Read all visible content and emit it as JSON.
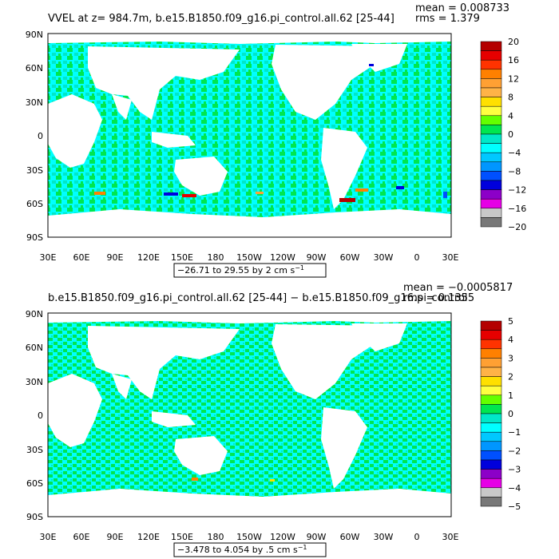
{
  "panels": [
    {
      "title": "VVEL at z= 984.7m, b.e15.B1850.f09_g16.pi_control.all.62 [25-44]",
      "mean": "mean = 0.008733",
      "rms": "rms = 1.379",
      "contour_info": "−26.71 to 29.55 by 2 cm s",
      "contour_unit_exp": "−1",
      "lat_labels": [
        "90N",
        "60N",
        "30N",
        "0",
        "30S",
        "60S",
        "90S"
      ],
      "lon_labels": [
        "30E",
        "60E",
        "90E",
        "120E",
        "150E",
        "180",
        "150W",
        "120W",
        "90W",
        "60W",
        "30W",
        "0",
        "30E"
      ],
      "colorbar_labels": [
        "20",
        "16",
        "12",
        "8",
        "4",
        "0",
        "−4",
        "−8",
        "−12",
        "−16",
        "−20"
      ],
      "colorbar_colors": [
        "#b40000",
        "#e60000",
        "#ff3300",
        "#ff8000",
        "#ffa033",
        "#ffb347",
        "#ffe000",
        "#ffff40",
        "#64ff00",
        "#00e650",
        "#00e8c8",
        "#00ffff",
        "#00c8ff",
        "#0096ff",
        "#0050ff",
        "#0000dc",
        "#8c00c8",
        "#e600e6",
        "#c8c8c8",
        "#787878"
      ]
    },
    {
      "title": "b.e15.B1850.f09_g16.pi_control.all.62 [25-44] − b.e15.B1850.f09_g16.pi_control",
      "mean": "mean = −0.0005817",
      "rms": "rms = 0.1355",
      "contour_info": "−3.478 to 4.054 by .5 cm s",
      "contour_unit_exp": "−1",
      "lat_labels": [
        "90N",
        "60N",
        "30N",
        "0",
        "30S",
        "60S",
        "90S"
      ],
      "lon_labels": [
        "30E",
        "60E",
        "90E",
        "120E",
        "150E",
        "180",
        "150W",
        "120W",
        "90W",
        "60W",
        "30W",
        "0",
        "30E"
      ],
      "colorbar_labels": [
        "5",
        "4",
        "3",
        "2",
        "1",
        "0",
        "−1",
        "−2",
        "−3",
        "−4",
        "−5"
      ],
      "colorbar_colors": [
        "#b40000",
        "#e60000",
        "#ff3300",
        "#ff8000",
        "#ffa033",
        "#ffb347",
        "#ffe000",
        "#ffff40",
        "#64ff00",
        "#00e650",
        "#00e8c8",
        "#00ffff",
        "#00c8ff",
        "#0096ff",
        "#0050ff",
        "#0000dc",
        "#8c00c8",
        "#e600e6",
        "#c8c8c8",
        "#787878"
      ]
    }
  ],
  "colors": {
    "ocean_a": "#00ffff",
    "ocean_b": "#00e650",
    "ocean_c": "#00e8c8",
    "land": "#ffffff"
  }
}
